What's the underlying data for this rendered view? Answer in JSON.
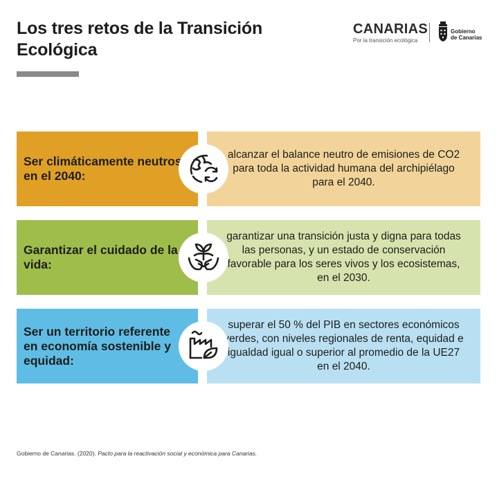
{
  "header": {
    "title": "Los tres retos de la Transición Ecológica",
    "brand_name": "CANARIAS",
    "brand_tagline": "Por la transición ecológica",
    "gov_line1": "Gobierno",
    "gov_line2": "de Canarias"
  },
  "rows": [
    {
      "label": "Ser climáticamente neutros en el 2040:",
      "description": "alcanzar el balance neutro de emisiones de CO2 para toda la actividad humana del archipiélago para el 2040.",
      "icon": "globe-recycle-icon",
      "color_dark": "#e0a025",
      "color_light": "#f2d49a"
    },
    {
      "label": "Garantizar el cuidado de la vida:",
      "description": "garantizar una transición justa y digna para todas las personas, y un estado de conservación favorable para los seres vivos y los ecosistemas, en el 2030.",
      "icon": "hands-plant-icon",
      "color_dark": "#9fbd4b",
      "color_light": "#d7e3ae"
    },
    {
      "label": "Ser un territorio referente en economía sostenible y equidad:",
      "description": "superar el 50 % del PIB en sectores económicos verdes, con niveles regionales de renta, equidad e igualdad igual o superior al promedio de la UE27 en el 2040.",
      "icon": "factory-leaf-icon",
      "color_dark": "#5fbde5",
      "color_light": "#b9e0f2"
    }
  ],
  "footer": {
    "source_plain": "Gobierno de Canarias. (2020). ",
    "source_italic": "Pacto para la reactivación social y económica para Canarias."
  }
}
